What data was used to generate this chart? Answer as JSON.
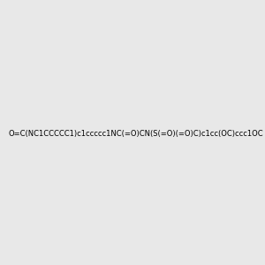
{
  "smiles": "O=C(NC1CCCCC1)c1ccccc1NC(=O)CN(S(=O)(=O)C)c1cc(OC)ccc1OC",
  "background_color": "#e8e8e8",
  "fig_width": 3.0,
  "fig_height": 3.0,
  "dpi": 100
}
